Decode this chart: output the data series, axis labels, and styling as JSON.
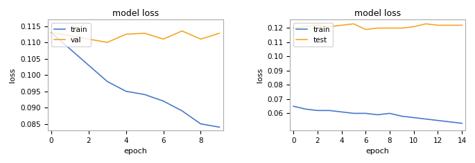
{
  "plot1": {
    "title": "model loss",
    "xlabel": "epoch",
    "ylabel": "loss",
    "train": [
      0.113,
      0.108,
      0.103,
      0.098,
      0.095,
      0.094,
      0.092,
      0.089,
      0.085,
      0.084
    ],
    "val": [
      0.113,
      0.112,
      0.111,
      0.11,
      0.1125,
      0.1128,
      0.111,
      0.1135,
      0.111,
      0.1128
    ],
    "train_color": "#4878cf",
    "val_color": "#f5a623",
    "xlim": [
      -0.2,
      9.2
    ],
    "ylim": [
      0.083,
      0.117
    ],
    "yticks": [
      0.085,
      0.09,
      0.095,
      0.1,
      0.105,
      0.11,
      0.115
    ],
    "xticks": [
      0,
      2,
      4,
      6,
      8
    ],
    "legend_labels": [
      "train",
      "val"
    ]
  },
  "plot2": {
    "title": "model loss",
    "xlabel": "epoch",
    "ylabel": "loss",
    "train": [
      0.065,
      0.063,
      0.062,
      0.062,
      0.061,
      0.06,
      0.06,
      0.059,
      0.06,
      0.058,
      0.057,
      0.056,
      0.055,
      0.054,
      0.053
    ],
    "test": [
      0.12,
      0.121,
      0.122,
      0.121,
      0.122,
      0.123,
      0.119,
      0.12,
      0.12,
      0.12,
      0.121,
      0.123,
      0.122,
      0.122,
      0.122
    ],
    "train_color": "#4878cf",
    "test_color": "#f5a623",
    "xlim": [
      -0.3,
      14.3
    ],
    "ylim": [
      0.048,
      0.126
    ],
    "yticks": [
      0.06,
      0.07,
      0.08,
      0.09,
      0.1,
      0.11,
      0.12
    ],
    "xticks": [
      0,
      2,
      4,
      6,
      8,
      10,
      12,
      14
    ],
    "legend_labels": [
      "train",
      "test"
    ]
  },
  "figsize": [
    6.85,
    2.35
  ],
  "dpi": 100,
  "axes_facecolor": "#ffffff",
  "fig_facecolor": "#ffffff"
}
